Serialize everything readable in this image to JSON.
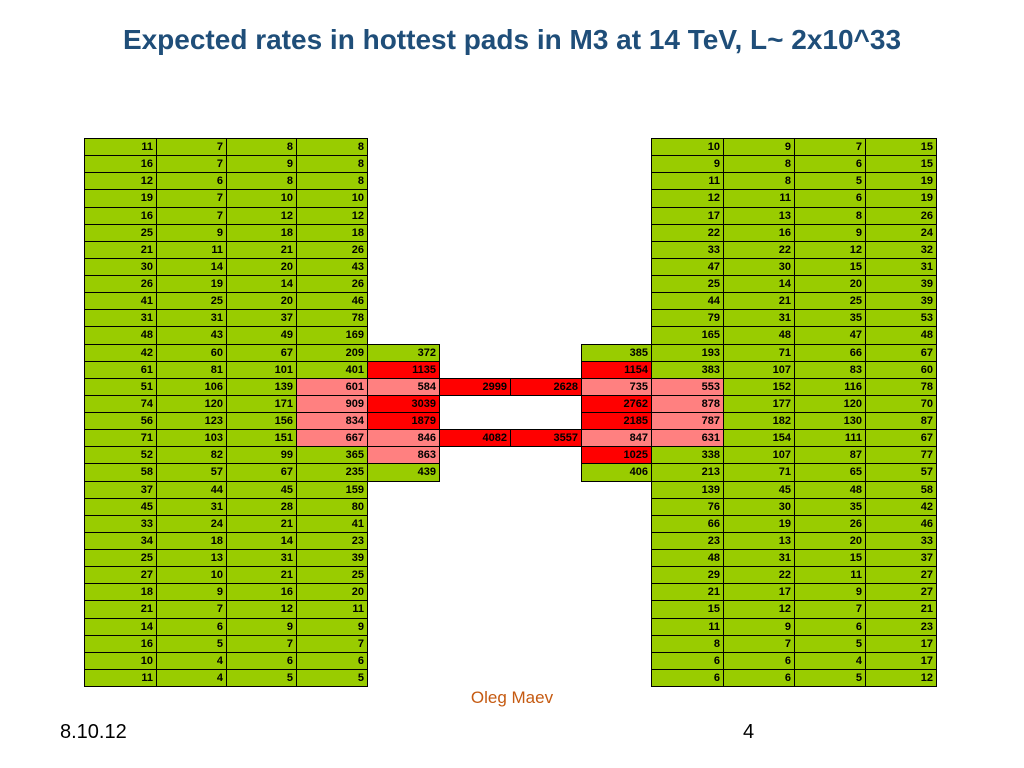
{
  "slide": {
    "title": "Expected rates in hottest pads in M3 at 14 TeV, L~ 2x10^33",
    "author": "Oleg Maev",
    "date": "8.10.12",
    "page_number": "4"
  },
  "colors": {
    "G": "#99cc00",
    "R": "#ff0000",
    "P": "#ff8080"
  },
  "table": {
    "rows": [
      {
        "vals": [
          "11",
          "7",
          "8",
          "8",
          "",
          "",
          "",
          "",
          "10",
          "9",
          "7",
          "15"
        ],
        "colors": "GGGG____GGGG"
      },
      {
        "vals": [
          "16",
          "7",
          "9",
          "8",
          "",
          "",
          "",
          "",
          "9",
          "8",
          "6",
          "15"
        ],
        "colors": "GGGG____GGGG"
      },
      {
        "vals": [
          "12",
          "6",
          "8",
          "8",
          "",
          "",
          "",
          "",
          "11",
          "8",
          "5",
          "19"
        ],
        "colors": "GGGG____GGGG"
      },
      {
        "vals": [
          "19",
          "7",
          "10",
          "10",
          "",
          "",
          "",
          "",
          "12",
          "11",
          "6",
          "19"
        ],
        "colors": "GGGG____GGGG"
      },
      {
        "vals": [
          "16",
          "7",
          "12",
          "12",
          "",
          "",
          "",
          "",
          "17",
          "13",
          "8",
          "26"
        ],
        "colors": "GGGG____GGGG"
      },
      {
        "vals": [
          "25",
          "9",
          "18",
          "18",
          "",
          "",
          "",
          "",
          "22",
          "16",
          "9",
          "24"
        ],
        "colors": "GGGG____GGGG"
      },
      {
        "vals": [
          "21",
          "11",
          "21",
          "26",
          "",
          "",
          "",
          "",
          "33",
          "22",
          "12",
          "32"
        ],
        "colors": "GGGG____GGGG"
      },
      {
        "vals": [
          "30",
          "14",
          "20",
          "43",
          "",
          "",
          "",
          "",
          "47",
          "30",
          "15",
          "31"
        ],
        "colors": "GGGG____GGGG"
      },
      {
        "vals": [
          "26",
          "19",
          "14",
          "26",
          "",
          "",
          "",
          "",
          "25",
          "14",
          "20",
          "39"
        ],
        "colors": "GGGG____GGGG"
      },
      {
        "vals": [
          "41",
          "25",
          "20",
          "46",
          "",
          "",
          "",
          "",
          "44",
          "21",
          "25",
          "39"
        ],
        "colors": "GGGG____GGGG"
      },
      {
        "vals": [
          "31",
          "31",
          "37",
          "78",
          "",
          "",
          "",
          "",
          "79",
          "31",
          "35",
          "53"
        ],
        "colors": "GGGG____GGGG"
      },
      {
        "vals": [
          "48",
          "43",
          "49",
          "169",
          "",
          "",
          "",
          "",
          "165",
          "48",
          "47",
          "48"
        ],
        "colors": "GGGG____GGGG"
      },
      {
        "vals": [
          "42",
          "60",
          "67",
          "209",
          "372",
          "",
          "",
          "385",
          "193",
          "71",
          "66",
          "67"
        ],
        "colors": "GGGGG__GGGGG"
      },
      {
        "vals": [
          "61",
          "81",
          "101",
          "401",
          "1135",
          "",
          "",
          "1154",
          "383",
          "107",
          "83",
          "60"
        ],
        "colors": "GGGGR__RGGGG"
      },
      {
        "vals": [
          "51",
          "106",
          "139",
          "601",
          "584",
          "2999",
          "2628",
          "735",
          "553",
          "152",
          "116",
          "78"
        ],
        "colors": "GGGPPRRPPGGG"
      },
      {
        "vals": [
          "74",
          "120",
          "171",
          "909",
          "3039",
          "",
          "",
          "2762",
          "878",
          "177",
          "120",
          "70"
        ],
        "colors": "GGGPR__RPGGG"
      },
      {
        "vals": [
          "56",
          "123",
          "156",
          "834",
          "1879",
          "",
          "",
          "2185",
          "787",
          "182",
          "130",
          "87"
        ],
        "colors": "GGGPR__RPGGG"
      },
      {
        "vals": [
          "71",
          "103",
          "151",
          "667",
          "846",
          "4082",
          "3557",
          "847",
          "631",
          "154",
          "111",
          "67"
        ],
        "colors": "GGGPPRRPPGGG"
      },
      {
        "vals": [
          "52",
          "82",
          "99",
          "365",
          "863",
          "",
          "",
          "1025",
          "338",
          "107",
          "87",
          "77"
        ],
        "colors": "GGGGP__RGGGG"
      },
      {
        "vals": [
          "58",
          "57",
          "67",
          "235",
          "439",
          "",
          "",
          "406",
          "213",
          "71",
          "65",
          "57"
        ],
        "colors": "GGGGG__GGGGG"
      },
      {
        "vals": [
          "37",
          "44",
          "45",
          "159",
          "",
          "",
          "",
          "",
          "139",
          "45",
          "48",
          "58"
        ],
        "colors": "GGGG____GGGG"
      },
      {
        "vals": [
          "45",
          "31",
          "28",
          "80",
          "",
          "",
          "",
          "",
          "76",
          "30",
          "35",
          "42"
        ],
        "colors": "GGGG____GGGG"
      },
      {
        "vals": [
          "33",
          "24",
          "21",
          "41",
          "",
          "",
          "",
          "",
          "66",
          "19",
          "26",
          "46"
        ],
        "colors": "GGGG____GGGG"
      },
      {
        "vals": [
          "34",
          "18",
          "14",
          "23",
          "",
          "",
          "",
          "",
          "23",
          "13",
          "20",
          "33"
        ],
        "colors": "GGGG____GGGG"
      },
      {
        "vals": [
          "25",
          "13",
          "31",
          "39",
          "",
          "",
          "",
          "",
          "48",
          "31",
          "15",
          "37"
        ],
        "colors": "GGGG____GGGG"
      },
      {
        "vals": [
          "27",
          "10",
          "21",
          "25",
          "",
          "",
          "",
          "",
          "29",
          "22",
          "11",
          "27"
        ],
        "colors": "GGGG____GGGG"
      },
      {
        "vals": [
          "18",
          "9",
          "16",
          "20",
          "",
          "",
          "",
          "",
          "21",
          "17",
          "9",
          "27"
        ],
        "colors": "GGGG____GGGG"
      },
      {
        "vals": [
          "21",
          "7",
          "12",
          "11",
          "",
          "",
          "",
          "",
          "15",
          "12",
          "7",
          "21"
        ],
        "colors": "GGGG____GGGG"
      },
      {
        "vals": [
          "14",
          "6",
          "9",
          "9",
          "",
          "",
          "",
          "",
          "11",
          "9",
          "6",
          "23"
        ],
        "colors": "GGGG____GGGG"
      },
      {
        "vals": [
          "16",
          "5",
          "7",
          "7",
          "",
          "",
          "",
          "",
          "8",
          "7",
          "5",
          "17"
        ],
        "colors": "GGGG____GGGG"
      },
      {
        "vals": [
          "10",
          "4",
          "6",
          "6",
          "",
          "",
          "",
          "",
          "6",
          "6",
          "4",
          "17"
        ],
        "colors": "GGGG____GGGG"
      },
      {
        "vals": [
          "11",
          "4",
          "5",
          "5",
          "",
          "",
          "",
          "",
          "6",
          "6",
          "5",
          "12"
        ],
        "colors": "GGGG____GGGG"
      }
    ]
  }
}
